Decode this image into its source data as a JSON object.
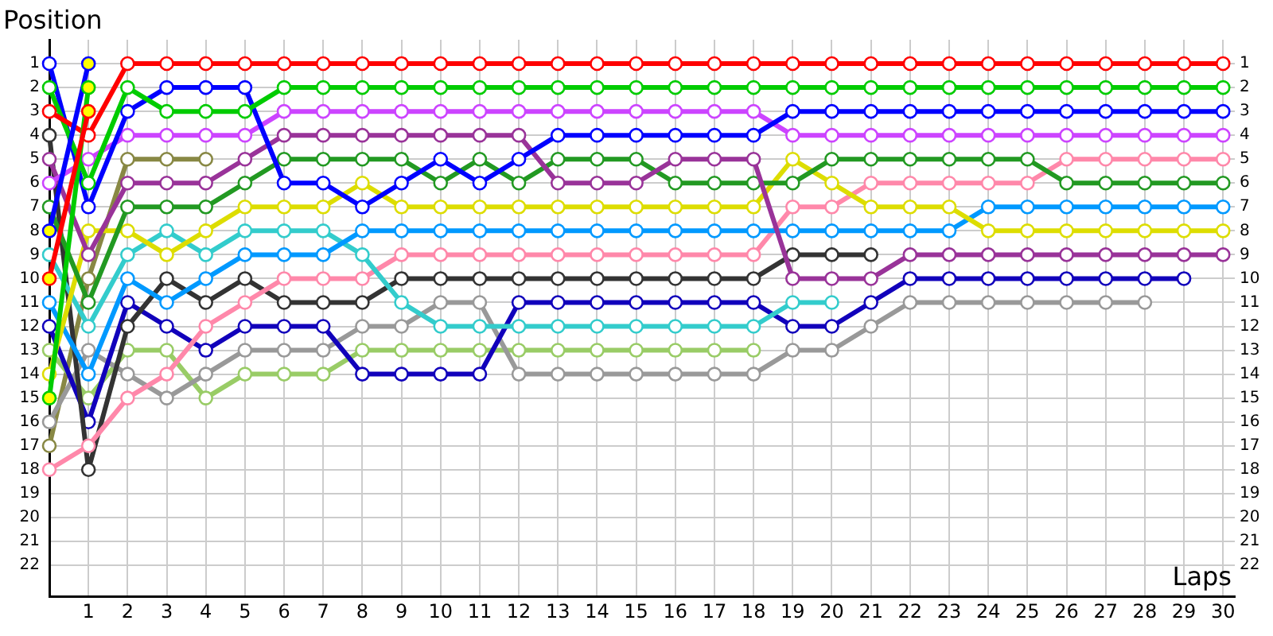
{
  "chart_data": {
    "type": "line",
    "xlabel": "Laps",
    "ylabel": "Position",
    "x": [
      0,
      1,
      2,
      3,
      4,
      5,
      6,
      7,
      8,
      9,
      10,
      11,
      12,
      13,
      14,
      15,
      16,
      17,
      18,
      19,
      20,
      21,
      22,
      23,
      24,
      25,
      26,
      27,
      28,
      29,
      30
    ],
    "xlim": [
      0,
      30.3
    ],
    "xticks": [
      1,
      2,
      3,
      4,
      5,
      6,
      7,
      8,
      9,
      10,
      11,
      12,
      13,
      14,
      15,
      16,
      17,
      18,
      19,
      20,
      21,
      22,
      23,
      24,
      25,
      26,
      27,
      28,
      29,
      30
    ],
    "ylim": [
      23.3,
      0
    ],
    "yticks": [
      1,
      2,
      3,
      4,
      5,
      6,
      7,
      8,
      9,
      10,
      11,
      12,
      13,
      14,
      15,
      16,
      17,
      18,
      19,
      20,
      21,
      22
    ],
    "y2lim": [
      23.3,
      0
    ],
    "y2ticks": [
      1,
      2,
      3,
      4,
      5,
      6,
      7,
      8,
      9,
      10,
      11,
      12,
      13,
      14,
      15,
      16,
      17,
      18,
      19,
      20,
      21,
      22
    ],
    "grid": true,
    "legend": false,
    "marker": "circle",
    "line_style": "solid",
    "series": [
      {
        "color": "#888844",
        "values": [
          17,
          10,
          5,
          5,
          5,
          null,
          null,
          null,
          null,
          null,
          null,
          null,
          null,
          null,
          null,
          null,
          null,
          null,
          null,
          null,
          null,
          null,
          null,
          null,
          null,
          null,
          null,
          null,
          null,
          null,
          null
        ]
      },
      {
        "color": "#99cc66",
        "values": [
          13,
          15,
          13,
          13,
          15,
          14,
          14,
          14,
          13,
          13,
          13,
          13,
          13,
          13,
          13,
          13,
          13,
          13,
          13,
          null,
          null,
          null,
          null,
          null,
          null,
          null,
          null,
          null,
          null,
          null,
          null
        ]
      },
      {
        "color": "#999999",
        "values": [
          16,
          13,
          14,
          15,
          14,
          13,
          13,
          13,
          12,
          12,
          11,
          11,
          14,
          14,
          14,
          14,
          14,
          14,
          14,
          13,
          13,
          12,
          11,
          11,
          11,
          11,
          11,
          11,
          11,
          null,
          null
        ]
      },
      {
        "color": "#1100bb",
        "values": [
          12,
          16,
          11,
          12,
          13,
          12,
          12,
          12,
          14,
          14,
          14,
          14,
          11,
          11,
          11,
          11,
          11,
          11,
          11,
          12,
          12,
          11,
          10,
          10,
          10,
          10,
          10,
          10,
          10,
          10,
          null
        ]
      },
      {
        "color": "#333333",
        "values": [
          4,
          18,
          12,
          10,
          11,
          10,
          11,
          11,
          11,
          10,
          10,
          10,
          10,
          10,
          10,
          10,
          10,
          10,
          10,
          9,
          9,
          9,
          null,
          null,
          null,
          null,
          null,
          null,
          null,
          null,
          null
        ]
      },
      {
        "color": "#ff88aa",
        "values": [
          18,
          17,
          15,
          14,
          12,
          11,
          10,
          10,
          10,
          9,
          9,
          9,
          9,
          9,
          9,
          9,
          9,
          9,
          9,
          7,
          7,
          6,
          6,
          6,
          6,
          6,
          5,
          5,
          5,
          5,
          5
        ]
      },
      {
        "color": "#33cccc",
        "values": [
          9,
          12,
          9,
          8,
          9,
          8,
          8,
          8,
          9,
          11,
          12,
          12,
          12,
          12,
          12,
          12,
          12,
          12,
          12,
          11,
          11,
          null,
          null,
          null,
          null,
          null,
          null,
          null,
          null,
          null,
          null
        ]
      },
      {
        "color": "#0099ff",
        "values": [
          11,
          14,
          10,
          11,
          10,
          9,
          9,
          9,
          8,
          8,
          8,
          8,
          8,
          8,
          8,
          8,
          8,
          8,
          8,
          8,
          8,
          8,
          8,
          8,
          7,
          7,
          7,
          7,
          7,
          7,
          7
        ]
      },
      {
        "color": "#dddd00",
        "values": [
          14,
          8,
          8,
          9,
          8,
          7,
          7,
          7,
          6,
          7,
          7,
          7,
          7,
          7,
          7,
          7,
          7,
          7,
          7,
          5,
          6,
          7,
          7,
          7,
          8,
          8,
          8,
          8,
          8,
          8,
          8
        ]
      },
      {
        "color": "#229922",
        "values": [
          7,
          11,
          7,
          7,
          7,
          6,
          5,
          5,
          5,
          5,
          6,
          5,
          6,
          5,
          5,
          5,
          6,
          6,
          6,
          6,
          5,
          5,
          5,
          5,
          5,
          5,
          6,
          6,
          6,
          6,
          6
        ]
      },
      {
        "color": "#993399",
        "values": [
          5,
          9,
          6,
          6,
          6,
          5,
          4,
          4,
          4,
          4,
          4,
          4,
          4,
          6,
          6,
          6,
          5,
          5,
          5,
          10,
          10,
          10,
          9,
          9,
          9,
          9,
          9,
          9,
          9,
          9,
          9
        ]
      },
      {
        "color": "#cc44ff",
        "values": [
          6,
          5,
          4,
          4,
          4,
          4,
          3,
          3,
          3,
          3,
          3,
          3,
          3,
          3,
          3,
          3,
          3,
          3,
          3,
          4,
          4,
          4,
          4,
          4,
          4,
          4,
          4,
          4,
          4,
          4,
          4
        ]
      },
      {
        "color": "#0000ff",
        "values": [
          1,
          7,
          3,
          2,
          2,
          2,
          6,
          6,
          7,
          6,
          5,
          6,
          5,
          4,
          4,
          4,
          4,
          4,
          4,
          3,
          3,
          3,
          3,
          3,
          3,
          3,
          3,
          3,
          3,
          3,
          3
        ]
      },
      {
        "color": "#00cc00",
        "values": [
          2,
          6,
          2,
          3,
          3,
          3,
          2,
          2,
          2,
          2,
          2,
          2,
          2,
          2,
          2,
          2,
          2,
          2,
          2,
          2,
          2,
          2,
          2,
          2,
          2,
          2,
          2,
          2,
          2,
          2,
          2
        ]
      },
      {
        "color": "#ff0000",
        "values": [
          3,
          4,
          1,
          1,
          1,
          1,
          1,
          1,
          1,
          1,
          1,
          1,
          1,
          1,
          1,
          1,
          1,
          1,
          1,
          1,
          1,
          1,
          1,
          1,
          1,
          1,
          1,
          1,
          1,
          1,
          1
        ]
      },
      {
        "color": "#0000ff",
        "values": [
          8,
          1,
          null,
          null,
          null,
          null,
          null,
          null,
          null,
          null,
          null,
          null,
          null,
          null,
          null,
          null,
          null,
          null,
          null,
          null,
          null,
          null,
          null,
          null,
          null,
          null,
          null,
          null,
          null,
          null,
          null
        ],
        "colors": [
          "#ffff00",
          "#ffff00",
          null,
          null,
          null,
          null,
          null,
          null,
          null,
          null,
          null,
          null,
          null,
          null,
          null,
          null,
          null,
          null,
          null,
          null,
          null,
          null,
          null,
          null,
          null,
          null,
          null,
          null,
          null,
          null,
          null
        ]
      },
      {
        "color": "#00cc00",
        "values": [
          15,
          2,
          null,
          null,
          null,
          null,
          null,
          null,
          null,
          null,
          null,
          null,
          null,
          null,
          null,
          null,
          null,
          null,
          null,
          null,
          null,
          null,
          null,
          null,
          null,
          null,
          null,
          null,
          null,
          null,
          null
        ],
        "colors": [
          "#ffff00",
          "#ffff00",
          null,
          null,
          null,
          null,
          null,
          null,
          null,
          null,
          null,
          null,
          null,
          null,
          null,
          null,
          null,
          null,
          null,
          null,
          null,
          null,
          null,
          null,
          null,
          null,
          null,
          null,
          null,
          null,
          null
        ]
      },
      {
        "color": "#ff0000",
        "values": [
          10,
          3,
          null,
          null,
          null,
          null,
          null,
          null,
          null,
          null,
          null,
          null,
          null,
          null,
          null,
          null,
          null,
          null,
          null,
          null,
          null,
          null,
          null,
          null,
          null,
          null,
          null,
          null,
          null,
          null,
          null
        ],
        "colors": [
          "#ffff00",
          "#ffff00",
          null,
          null,
          null,
          null,
          null,
          null,
          null,
          null,
          null,
          null,
          null,
          null,
          null,
          null,
          null,
          null,
          null,
          null,
          null,
          null,
          null,
          null,
          null,
          null,
          null,
          null,
          null,
          null,
          null
        ]
      }
    ]
  }
}
